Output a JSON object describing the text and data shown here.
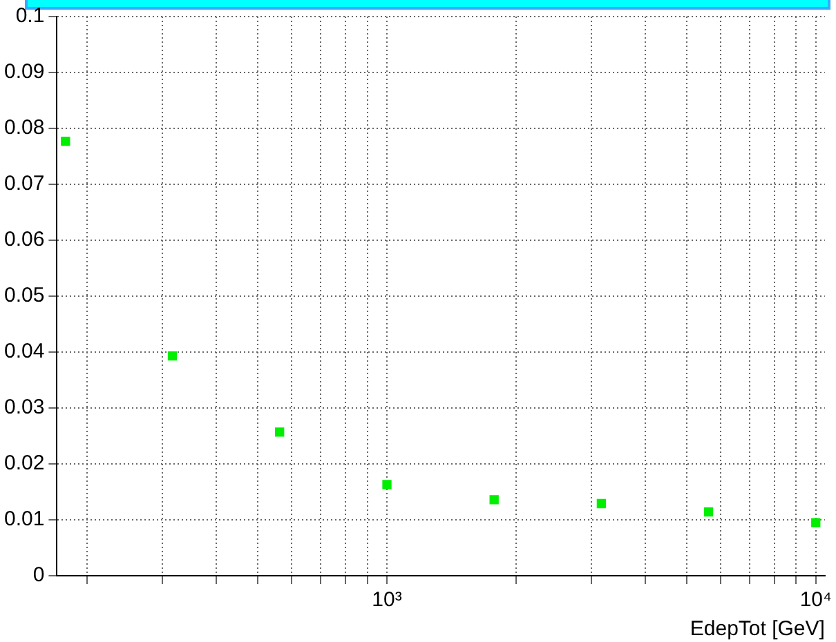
{
  "chart_data": {
    "type": "scatter",
    "xlabel": "EdepTot [GeV]",
    "x": [
      178,
      316,
      562,
      1000,
      1778,
      3162,
      5623,
      10000
    ],
    "series": [
      {
        "color": "#00ee00",
        "values": [
          0.0777,
          0.0393,
          0.0257,
          0.0163,
          0.0136,
          0.0129,
          0.0114,
          0.0095
        ]
      }
    ],
    "log": "x",
    "xlim": [
      170,
      10500
    ],
    "xticks": [
      {
        "value": 200,
        "label": null
      },
      {
        "value": 300,
        "label": null
      },
      {
        "value": 400,
        "label": null
      },
      {
        "value": 500,
        "label": null
      },
      {
        "value": 600,
        "label": null
      },
      {
        "value": 700,
        "label": null
      },
      {
        "value": 800,
        "label": null
      },
      {
        "value": 900,
        "label": null
      },
      {
        "value": 1000,
        "label": "10³"
      },
      {
        "value": 2000,
        "label": null
      },
      {
        "value": 3000,
        "label": null
      },
      {
        "value": 4000,
        "label": null
      },
      {
        "value": 5000,
        "label": null
      },
      {
        "value": 6000,
        "label": null
      },
      {
        "value": 7000,
        "label": null
      },
      {
        "value": 8000,
        "label": null
      },
      {
        "value": 9000,
        "label": null
      },
      {
        "value": 10000,
        "label": "10⁴"
      }
    ],
    "ylim": [
      0,
      0.1
    ],
    "yticks": [
      0,
      0.01,
      0.02,
      0.03,
      0.04,
      0.05,
      0.06,
      0.07,
      0.08,
      0.09,
      0.1
    ],
    "grid": true,
    "marker": "square",
    "legend": false
  }
}
